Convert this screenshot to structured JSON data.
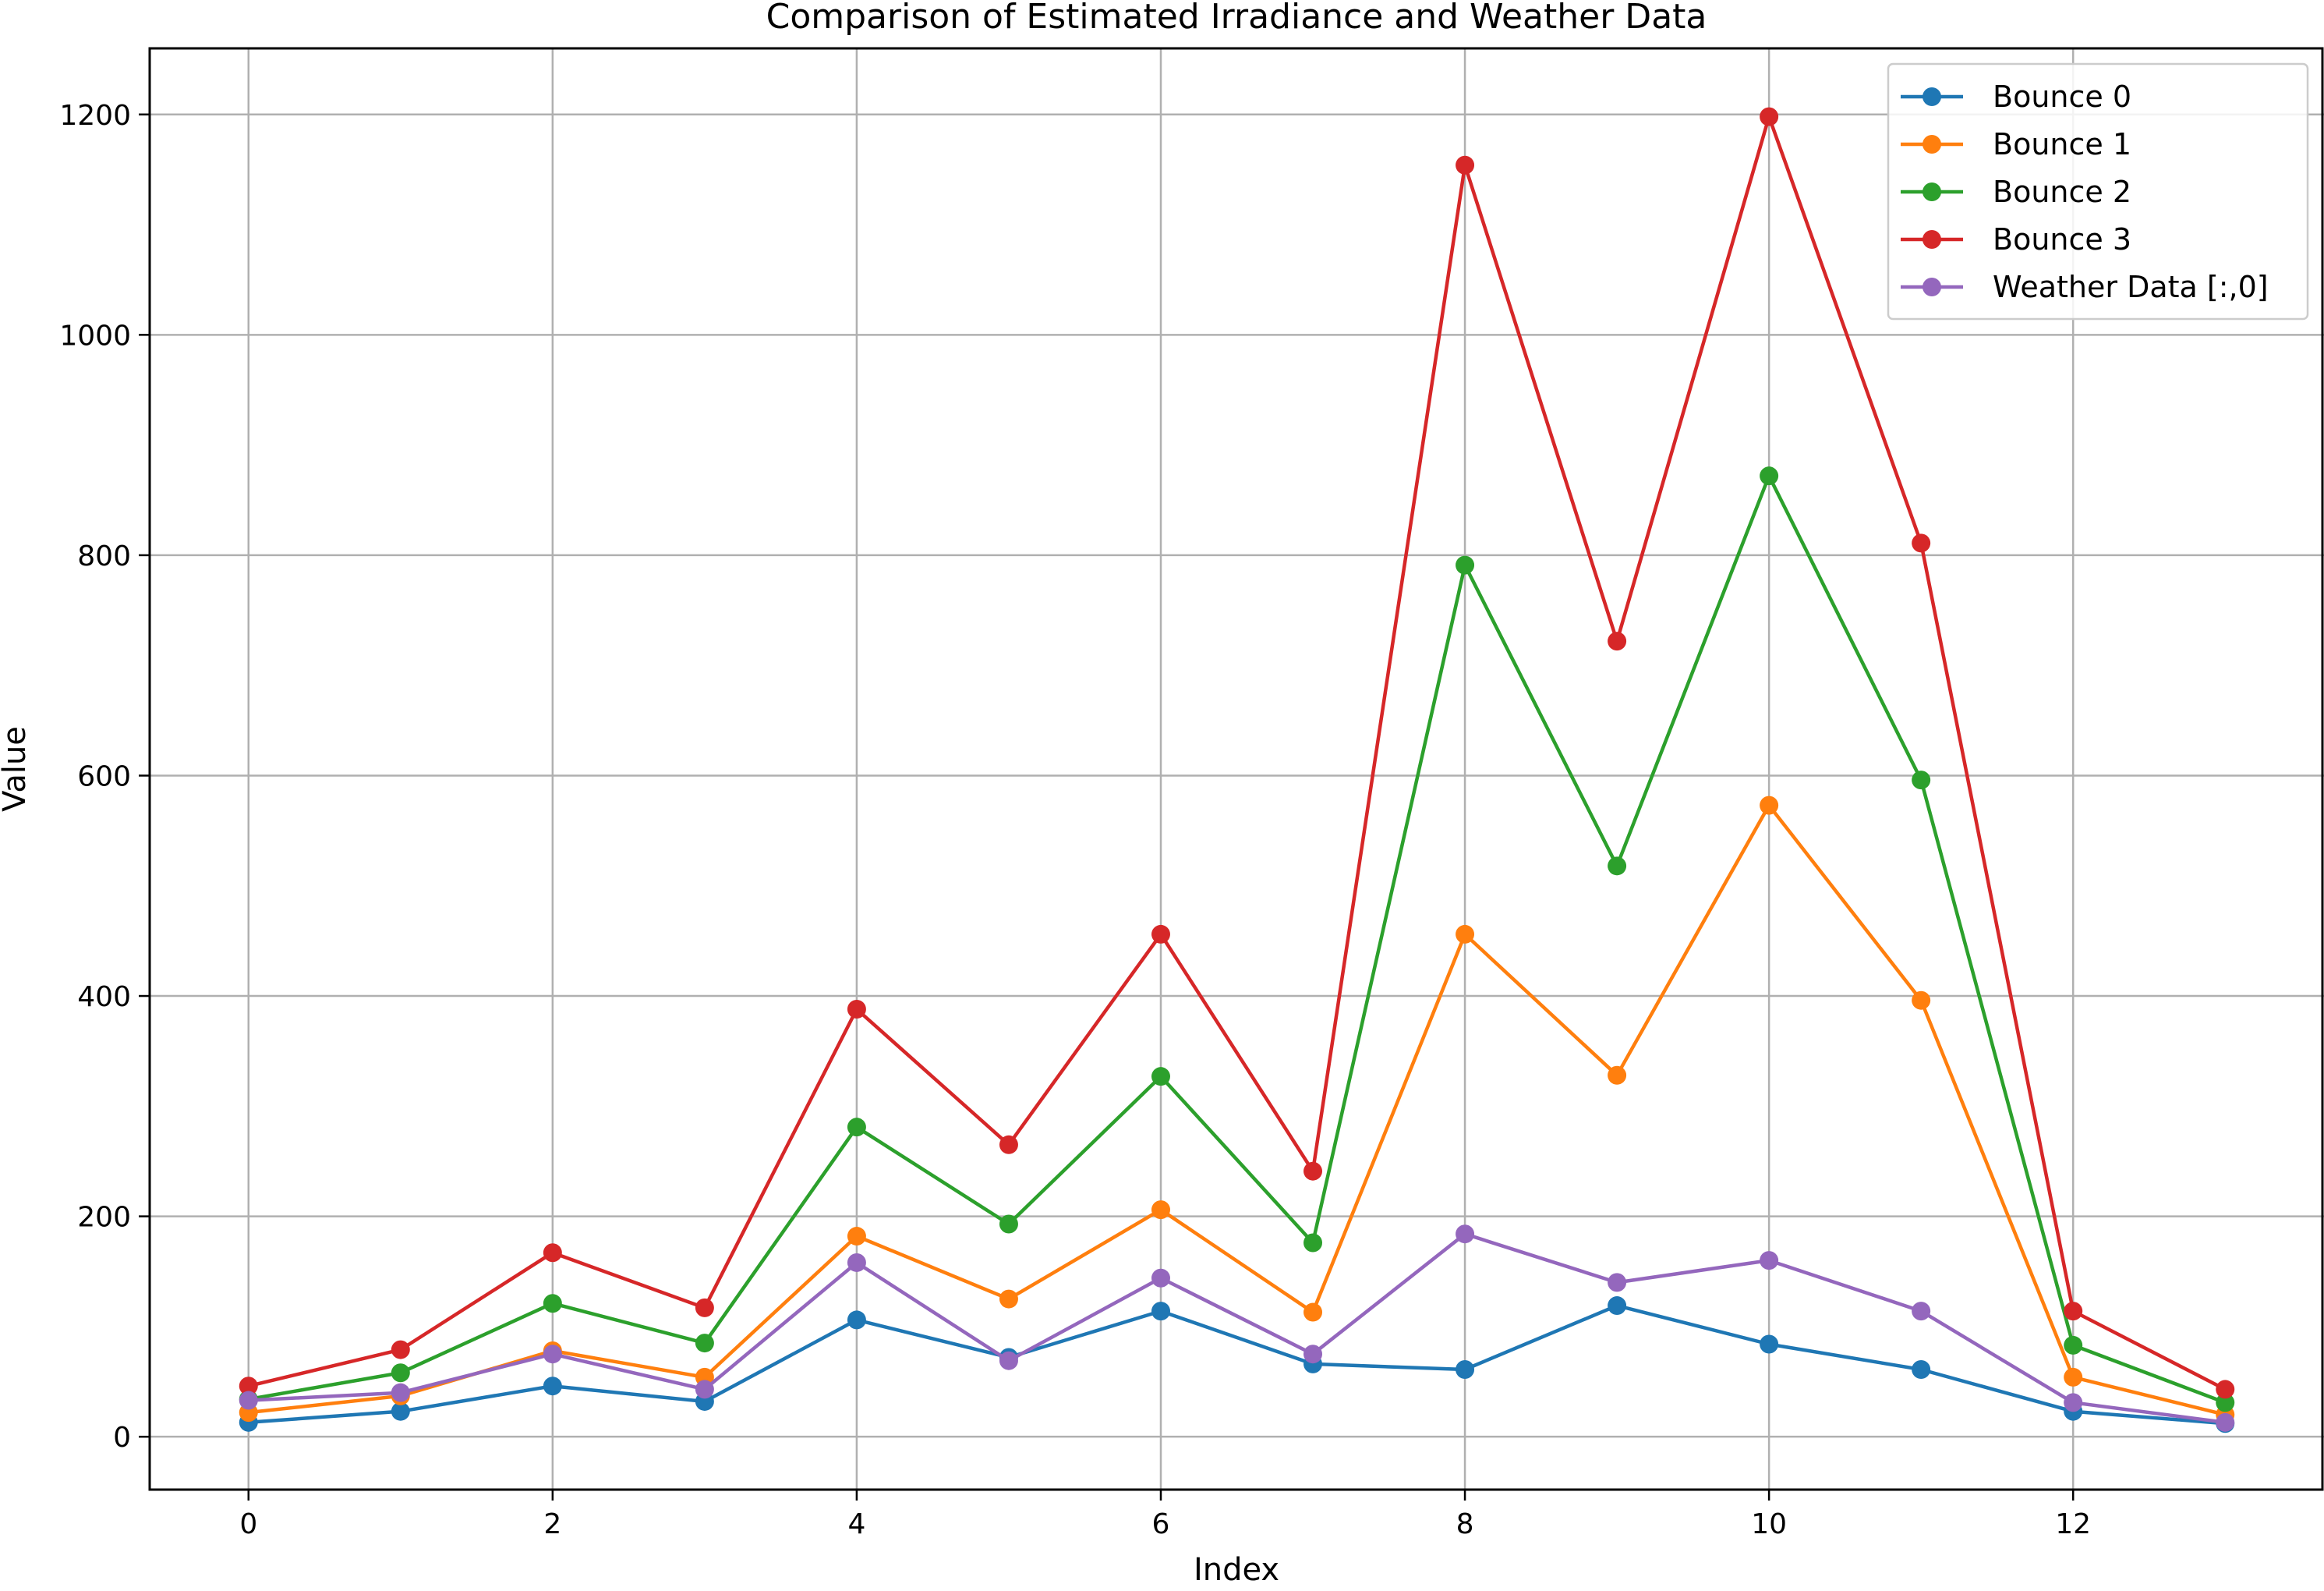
{
  "chart_data": {
    "type": "line",
    "title": "Comparison of Estimated Irradiance and Weather Data",
    "xlabel": "Index",
    "ylabel": "Value",
    "xlim": [
      -0.65,
      13.65
    ],
    "ylim": [
      -48,
      1260
    ],
    "xticks": [
      0,
      2,
      4,
      6,
      8,
      10,
      12
    ],
    "yticks": [
      0,
      200,
      400,
      600,
      800,
      1000,
      1200
    ],
    "grid": true,
    "legend_position": "upper-right",
    "marker": "circle",
    "x": [
      0,
      1,
      2,
      3,
      4,
      5,
      6,
      7,
      8,
      9,
      10,
      11,
      12,
      13
    ],
    "series": [
      {
        "name": "Bounce 0",
        "color": "#1f77b4",
        "values": [
          13,
          23,
          46,
          32,
          106,
          72,
          114,
          66,
          61,
          119,
          84,
          61,
          23,
          12
        ]
      },
      {
        "name": "Bounce 1",
        "color": "#ff7f0e",
        "values": [
          22,
          37,
          78,
          54,
          182,
          125,
          206,
          113,
          456,
          328,
          573,
          396,
          54,
          20
        ]
      },
      {
        "name": "Bounce 2",
        "color": "#2ca02c",
        "values": [
          34,
          58,
          121,
          85,
          281,
          193,
          327,
          176,
          791,
          518,
          872,
          596,
          83,
          31
        ]
      },
      {
        "name": "Bounce 3",
        "color": "#d62728",
        "values": [
          46,
          79,
          167,
          117,
          388,
          265,
          456,
          241,
          1154,
          722,
          1198,
          811,
          114,
          43
        ]
      },
      {
        "name": "Weather Data [:,0]",
        "color": "#9467bd",
        "values": [
          33,
          40,
          75,
          43,
          158,
          69,
          144,
          75,
          184,
          140,
          160,
          114,
          31,
          13
        ]
      }
    ]
  }
}
